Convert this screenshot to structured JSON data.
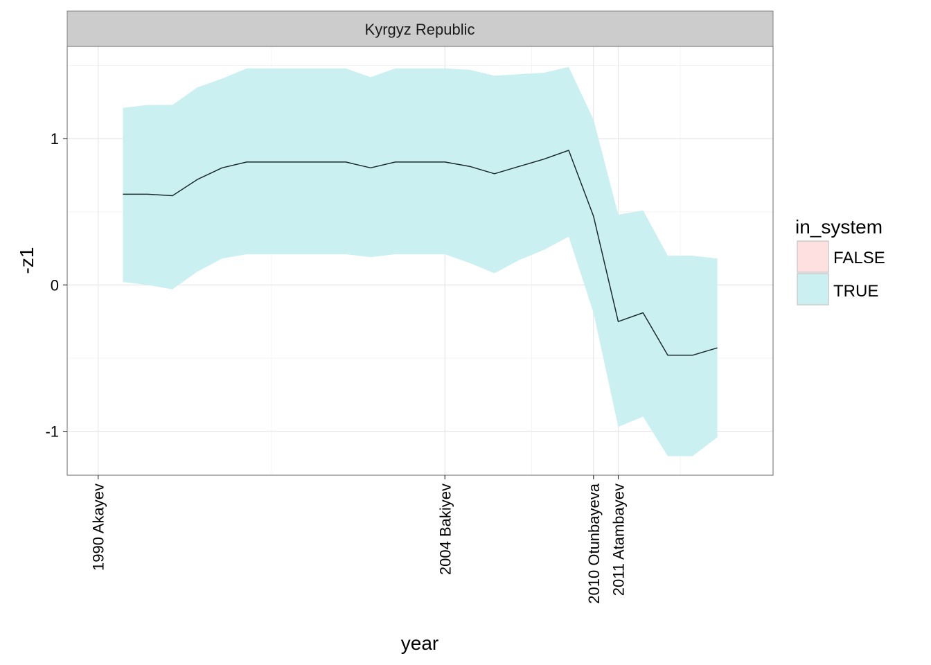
{
  "chart_data": {
    "type": "area",
    "facet_title": "Kyrgyz Republic",
    "xlabel": "year",
    "ylabel": "-z1",
    "xlim": [
      1988.75,
      2017.25
    ],
    "ylim": [
      -1.3,
      1.63
    ],
    "y_ticks": [
      -1,
      0,
      1
    ],
    "x_ticks": [
      1990,
      2004,
      2010,
      2011
    ],
    "x_tick_labels": [
      "1990 Akayev",
      "2004 Bakiyev",
      "2010 Otunbayeva",
      "2011 Atambayev"
    ],
    "x_minor_grid": [
      1997,
      2007.5,
      2013.5
    ],
    "y_minor_grid": [
      -0.5,
      0.5,
      1.5
    ],
    "legend": {
      "title": "in_system",
      "position": "right",
      "items": [
        {
          "label": "FALSE",
          "color": "#fde0df"
        },
        {
          "label": "TRUE",
          "color": "#cbf0f2"
        }
      ]
    },
    "series": [
      {
        "name": "TRUE",
        "x": [
          1991,
          1992,
          1993,
          1994,
          1995,
          1996,
          1997,
          1998,
          1999,
          2000,
          2001,
          2002,
          2003,
          2004,
          2005,
          2006,
          2007,
          2008,
          2009,
          2010,
          2011,
          2012,
          2013,
          2014,
          2015
        ],
        "y": [
          0.62,
          0.62,
          0.61,
          0.72,
          0.8,
          0.84,
          0.84,
          0.84,
          0.84,
          0.84,
          0.8,
          0.84,
          0.84,
          0.84,
          0.81,
          0.76,
          0.81,
          0.86,
          0.92,
          0.47,
          -0.25,
          -0.19,
          -0.48,
          -0.48,
          -0.43
        ],
        "lower": [
          0.02,
          0.0,
          -0.03,
          0.09,
          0.18,
          0.21,
          0.21,
          0.21,
          0.21,
          0.21,
          0.19,
          0.21,
          0.21,
          0.21,
          0.15,
          0.08,
          0.17,
          0.24,
          0.33,
          -0.19,
          -0.97,
          -0.9,
          -1.17,
          -1.17,
          -1.04
        ],
        "upper": [
          1.21,
          1.23,
          1.23,
          1.35,
          1.41,
          1.48,
          1.48,
          1.48,
          1.48,
          1.48,
          1.42,
          1.48,
          1.48,
          1.48,
          1.47,
          1.43,
          1.44,
          1.45,
          1.49,
          1.13,
          0.48,
          0.51,
          0.2,
          0.2,
          0.18
        ]
      }
    ]
  },
  "colors": {
    "ribbon_true": "#cbf0f2",
    "ribbon_false": "#fde0df",
    "line": "#1a2a2a",
    "strip_bg": "#cccccc",
    "panel_border": "#7f7f7f",
    "grid_major": "#e6e6e6",
    "grid_minor": "#f4f4f4"
  }
}
